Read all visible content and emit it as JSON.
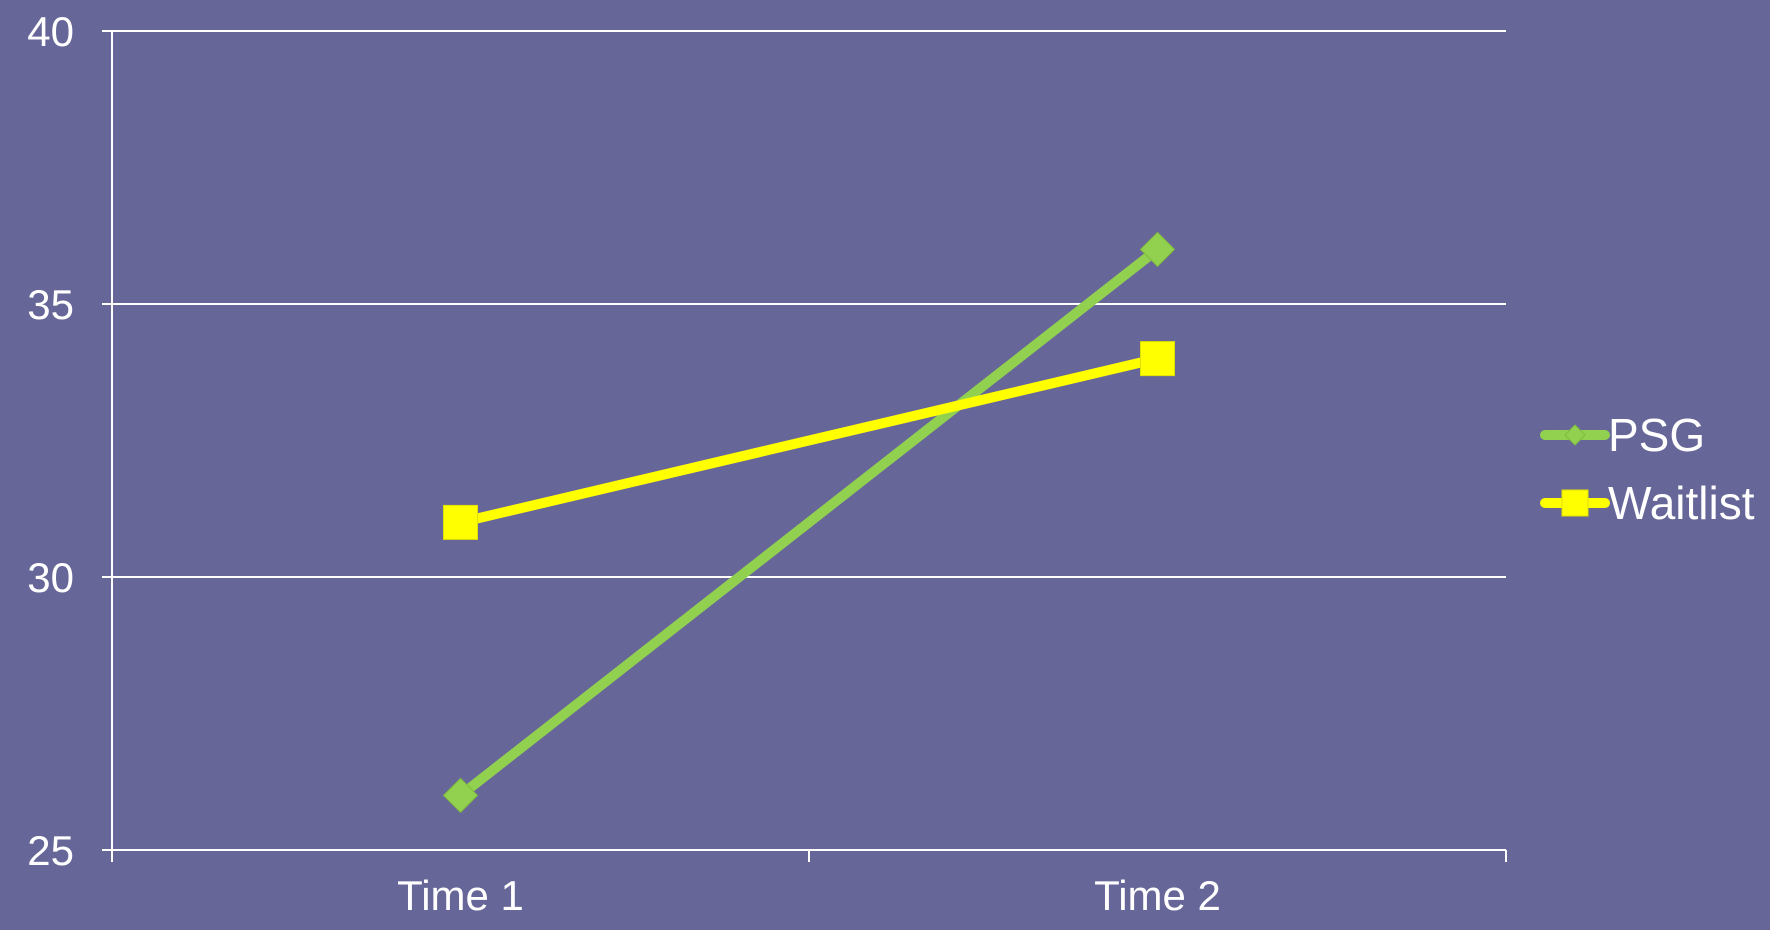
{
  "colors": {
    "background": "#666699",
    "axis": "#ffffff",
    "grid": "#ffffff",
    "text": "#ffffff"
  },
  "chart_data": {
    "type": "line",
    "categories": [
      "Time 1",
      "Time 2"
    ],
    "series": [
      {
        "name": "PSG",
        "values": [
          26,
          36
        ],
        "color": "#92d050",
        "marker": "diamond"
      },
      {
        "name": "Waitlist",
        "values": [
          31,
          34
        ],
        "color": "#ffff00",
        "marker": "square"
      }
    ],
    "title": "",
    "xlabel": "",
    "ylabel": "",
    "ylim": [
      25,
      40
    ],
    "yticks": [
      25,
      30,
      35,
      40
    ],
    "grid": true,
    "legend": "right"
  }
}
